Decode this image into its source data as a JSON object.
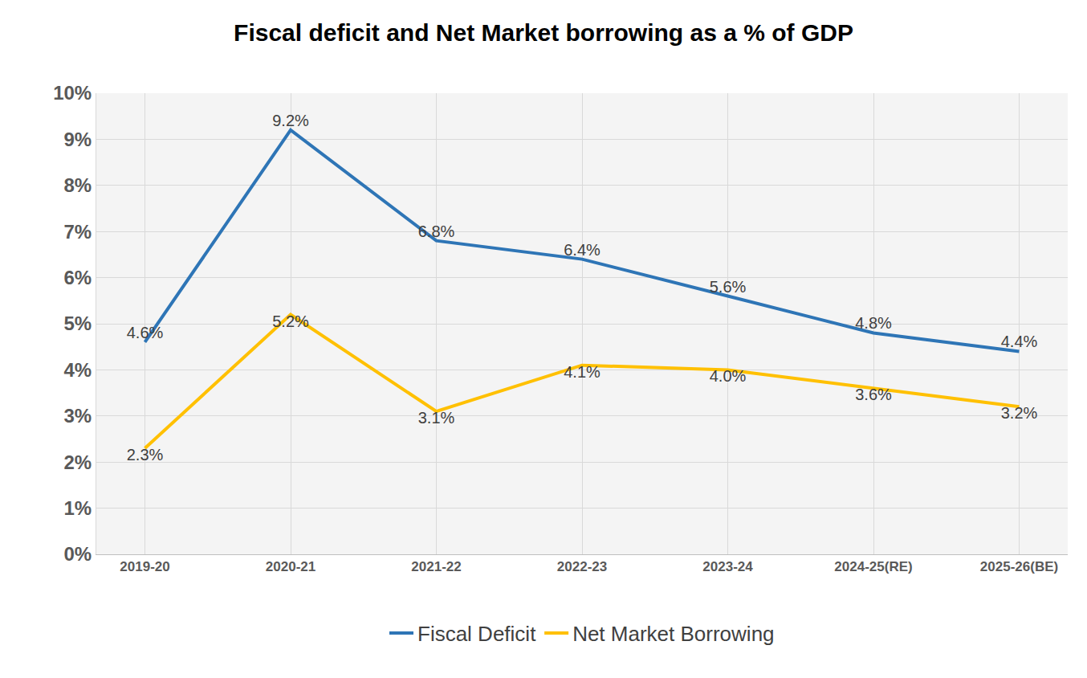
{
  "chart_data": {
    "type": "line",
    "title": "Fiscal deficit and Net Market borrowing as a % of GDP",
    "categories": [
      "2019-20",
      "2020-21",
      "2021-22",
      "2022-23",
      "2023-24",
      "2024-25(RE)",
      "2025-26(BE)"
    ],
    "series": [
      {
        "name": "Fiscal Deficit",
        "color": "#2E75B6",
        "values": [
          4.6,
          9.2,
          6.8,
          6.4,
          5.6,
          4.8,
          4.4
        ],
        "value_labels": [
          "4.6%",
          "9.2%",
          "6.8%",
          "6.4%",
          "5.6%",
          "4.8%",
          "4.4%"
        ]
      },
      {
        "name": "Net Market Borrowing",
        "color": "#FFC000",
        "values": [
          2.3,
          5.2,
          3.1,
          4.1,
          4.0,
          3.6,
          3.2
        ],
        "value_labels": [
          "2.3%",
          "5.2%",
          "3.1%",
          "4.1%",
          "4.0%",
          "3.6%",
          "3.2%"
        ]
      }
    ],
    "ylim": [
      0,
      10
    ],
    "yticks": [
      {
        "value": 0,
        "label": "0%"
      },
      {
        "value": 1,
        "label": "1%"
      },
      {
        "value": 2,
        "label": "2%"
      },
      {
        "value": 3,
        "label": "3%"
      },
      {
        "value": 4,
        "label": "4%"
      },
      {
        "value": 5,
        "label": "5%"
      },
      {
        "value": 6,
        "label": "6%"
      },
      {
        "value": 7,
        "label": "7%"
      },
      {
        "value": 8,
        "label": "8%"
      },
      {
        "value": 9,
        "label": "9%"
      },
      {
        "value": 10,
        "label": "10%"
      }
    ],
    "grid": true,
    "legend": "bottom",
    "data_labels": true
  }
}
